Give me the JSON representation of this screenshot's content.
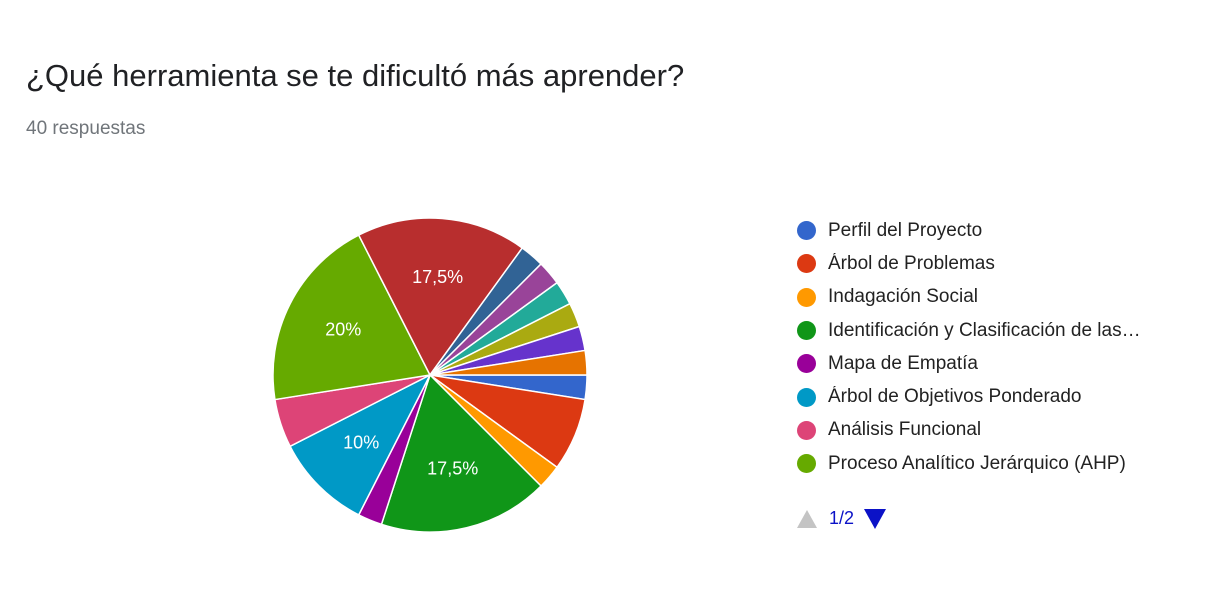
{
  "header": {
    "title": "¿Qué herramienta se te dificultó más aprender?",
    "responses": "40 respuestas"
  },
  "chart_data": {
    "type": "pie",
    "title": "¿Qué herramienta se te dificultó más aprender?",
    "total": 40,
    "slices": [
      {
        "name": "Perfil del Proyecto",
        "value": 1,
        "color": "#3366cc"
      },
      {
        "name": "Árbol de Problemas",
        "value": 3,
        "color": "#dc3912"
      },
      {
        "name": "Indagación Social",
        "value": 1,
        "color": "#ff9900"
      },
      {
        "name": "Identificación y Clasificación de las…",
        "value": 7,
        "color": "#109618",
        "label": "17,5%"
      },
      {
        "name": "Mapa de Empatía",
        "value": 1,
        "color": "#990099"
      },
      {
        "name": "Árbol de Objetivos Ponderado",
        "value": 4,
        "color": "#0099c6",
        "label": "10%"
      },
      {
        "name": "Análisis Funcional",
        "value": 2,
        "color": "#dd4477"
      },
      {
        "name": "Proceso Analítico Jerárquico (AHP)",
        "value": 8,
        "color": "#66aa00",
        "label": "20%"
      },
      {
        "name": "",
        "value": 7,
        "color": "#b82e2e",
        "label": "17,5%"
      },
      {
        "name": "",
        "value": 1,
        "color": "#316395"
      },
      {
        "name": "",
        "value": 1,
        "color": "#994499"
      },
      {
        "name": "",
        "value": 1,
        "color": "#22aa99"
      },
      {
        "name": "",
        "value": 1,
        "color": "#aaaa11"
      },
      {
        "name": "",
        "value": 1,
        "color": "#6633cc"
      },
      {
        "name": "",
        "value": 1,
        "color": "#e67300"
      }
    ],
    "legend_position": "right"
  },
  "legend": {
    "items": [
      {
        "label": "Perfil del Proyecto",
        "color": "#3366cc"
      },
      {
        "label": "Árbol de Problemas",
        "color": "#dc3912"
      },
      {
        "label": "Indagación Social",
        "color": "#ff9900"
      },
      {
        "label": "Identificación y Clasificación de las…",
        "color": "#109618"
      },
      {
        "label": "Mapa de Empatía",
        "color": "#990099"
      },
      {
        "label": "Árbol de Objetivos Ponderado",
        "color": "#0099c6"
      },
      {
        "label": "Análisis Funcional",
        "color": "#dd4477"
      },
      {
        "label": "Proceso Analítico Jerárquico (AHP)",
        "color": "#66aa00"
      }
    ],
    "page": "1/2"
  }
}
